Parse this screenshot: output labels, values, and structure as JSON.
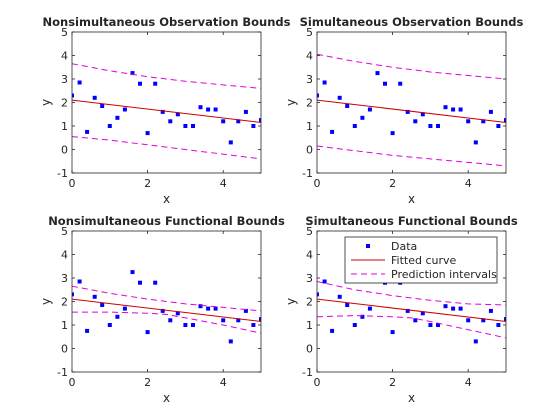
{
  "colors": {
    "data": "#0000ff",
    "fit": "#cc0000",
    "bounds": "#e000e0",
    "axis": "#262626"
  },
  "legend": {
    "placement": "top-right of bottom-right panel",
    "entries": [
      "Data",
      "Fitted curve",
      "Prediction intervals"
    ]
  },
  "chart_data": [
    {
      "type": "scatter",
      "title": "Nonsimultaneous Observation Bounds",
      "xlabel": "x",
      "ylabel": "y",
      "xlim": [
        0,
        5
      ],
      "ylim": [
        -1,
        5
      ],
      "xticks": [
        "0",
        "2",
        "4"
      ],
      "yticks": [
        "-1",
        "0",
        "1",
        "2",
        "3",
        "4",
        "5"
      ],
      "series": [
        {
          "kind": "points",
          "x": [
            0,
            0.2,
            0.4,
            0.6,
            0.8,
            1.0,
            1.2,
            1.4,
            1.6,
            1.8,
            2.0,
            2.2,
            2.4,
            2.6,
            2.8,
            3.0,
            3.2,
            3.4,
            3.6,
            3.8,
            4.0,
            4.2,
            4.4,
            4.6,
            4.8,
            5.0
          ],
          "y": [
            2.3,
            2.85,
            0.75,
            2.2,
            1.85,
            1.0,
            1.35,
            1.7,
            3.25,
            2.8,
            0.7,
            2.8,
            1.6,
            1.2,
            1.5,
            1.0,
            1.0,
            1.8,
            1.7,
            1.7,
            1.2,
            0.3,
            1.2,
            1.6,
            1.0,
            1.25
          ]
        },
        {
          "kind": "fit",
          "x": [
            0,
            5
          ],
          "y": [
            2.1,
            1.15
          ]
        },
        {
          "kind": "bounds",
          "x": [
            0,
            1,
            2,
            3,
            4,
            5
          ],
          "lower": [
            0.55,
            0.4,
            0.2,
            0.0,
            -0.2,
            -0.4
          ],
          "upper": [
            3.65,
            3.35,
            3.1,
            2.9,
            2.75,
            2.6
          ]
        }
      ]
    },
    {
      "type": "scatter",
      "title": "Simultaneous Observation Bounds",
      "xlabel": "x",
      "ylabel": "y",
      "xlim": [
        0,
        5
      ],
      "ylim": [
        -1,
        5
      ],
      "xticks": [
        "0",
        "2",
        "4"
      ],
      "yticks": [
        "-1",
        "0",
        "1",
        "2",
        "3",
        "4",
        "5"
      ],
      "series": [
        {
          "kind": "points",
          "x": [
            0,
            0.2,
            0.4,
            0.6,
            0.8,
            1.0,
            1.2,
            1.4,
            1.6,
            1.8,
            2.0,
            2.2,
            2.4,
            2.6,
            2.8,
            3.0,
            3.2,
            3.4,
            3.6,
            3.8,
            4.0,
            4.2,
            4.4,
            4.6,
            4.8,
            5.0
          ],
          "y": [
            2.3,
            2.85,
            0.75,
            2.2,
            1.85,
            1.0,
            1.35,
            1.7,
            3.25,
            2.8,
            0.7,
            2.8,
            1.6,
            1.2,
            1.5,
            1.0,
            1.0,
            1.8,
            1.7,
            1.7,
            1.2,
            0.3,
            1.2,
            1.6,
            1.0,
            1.25
          ]
        },
        {
          "kind": "fit",
          "x": [
            0,
            5
          ],
          "y": [
            2.1,
            1.15
          ]
        },
        {
          "kind": "bounds",
          "x": [
            0,
            1,
            2,
            3,
            4,
            5
          ],
          "lower": [
            0.15,
            -0.05,
            -0.25,
            -0.4,
            -0.55,
            -0.7
          ],
          "upper": [
            4.05,
            3.75,
            3.5,
            3.3,
            3.15,
            3.0
          ]
        }
      ]
    },
    {
      "type": "scatter",
      "title": "Nonsimultaneous Functional Bounds",
      "xlabel": "x",
      "ylabel": "y",
      "xlim": [
        0,
        5
      ],
      "ylim": [
        -1,
        5
      ],
      "xticks": [
        "0",
        "2",
        "4"
      ],
      "yticks": [
        "-1",
        "0",
        "1",
        "2",
        "3",
        "4",
        "5"
      ],
      "series": [
        {
          "kind": "points",
          "x": [
            0,
            0.2,
            0.4,
            0.6,
            0.8,
            1.0,
            1.2,
            1.4,
            1.6,
            1.8,
            2.0,
            2.2,
            2.4,
            2.6,
            2.8,
            3.0,
            3.2,
            3.4,
            3.6,
            3.8,
            4.0,
            4.2,
            4.4,
            4.6,
            4.8,
            5.0
          ],
          "y": [
            2.3,
            2.85,
            0.75,
            2.2,
            1.85,
            1.0,
            1.35,
            1.7,
            3.25,
            2.8,
            0.7,
            2.8,
            1.6,
            1.2,
            1.5,
            1.0,
            1.0,
            1.8,
            1.7,
            1.7,
            1.2,
            0.3,
            1.2,
            1.6,
            1.0,
            1.25
          ]
        },
        {
          "kind": "fit",
          "x": [
            0,
            5
          ],
          "y": [
            2.1,
            1.15
          ]
        },
        {
          "kind": "bounds",
          "x": [
            0,
            1,
            2,
            2.5,
            3,
            4,
            5
          ],
          "lower": [
            1.55,
            1.55,
            1.5,
            1.45,
            1.3,
            1.0,
            0.65
          ],
          "upper": [
            2.65,
            2.35,
            2.1,
            2.0,
            1.9,
            1.75,
            1.6
          ]
        }
      ]
    },
    {
      "type": "scatter",
      "title": "Simultaneous Functional Bounds",
      "xlabel": "x",
      "ylabel": "y",
      "xlim": [
        0,
        5
      ],
      "ylim": [
        -1,
        5
      ],
      "xticks": [
        "0",
        "2",
        "4"
      ],
      "yticks": [
        "-1",
        "0",
        "1",
        "2",
        "3",
        "4",
        "5"
      ],
      "series": [
        {
          "kind": "points",
          "x": [
            0,
            0.2,
            0.4,
            0.6,
            0.8,
            1.0,
            1.2,
            1.4,
            1.6,
            1.8,
            2.0,
            2.2,
            2.4,
            2.6,
            2.8,
            3.0,
            3.2,
            3.4,
            3.6,
            3.8,
            4.0,
            4.2,
            4.4,
            4.6,
            4.8,
            5.0
          ],
          "y": [
            2.3,
            2.85,
            0.75,
            2.2,
            1.85,
            1.0,
            1.35,
            1.7,
            3.25,
            2.8,
            0.7,
            2.8,
            1.6,
            1.2,
            1.5,
            1.0,
            1.0,
            1.8,
            1.7,
            1.7,
            1.2,
            0.3,
            1.2,
            1.6,
            1.0,
            1.25
          ]
        },
        {
          "kind": "fit",
          "x": [
            0,
            5
          ],
          "y": [
            2.1,
            1.15
          ]
        },
        {
          "kind": "bounds",
          "x": [
            0,
            1,
            2,
            2.5,
            3,
            4,
            5
          ],
          "lower": [
            1.35,
            1.4,
            1.35,
            1.3,
            1.15,
            0.8,
            0.45
          ],
          "upper": [
            2.85,
            2.5,
            2.25,
            2.15,
            2.05,
            1.9,
            1.85
          ]
        }
      ]
    }
  ]
}
